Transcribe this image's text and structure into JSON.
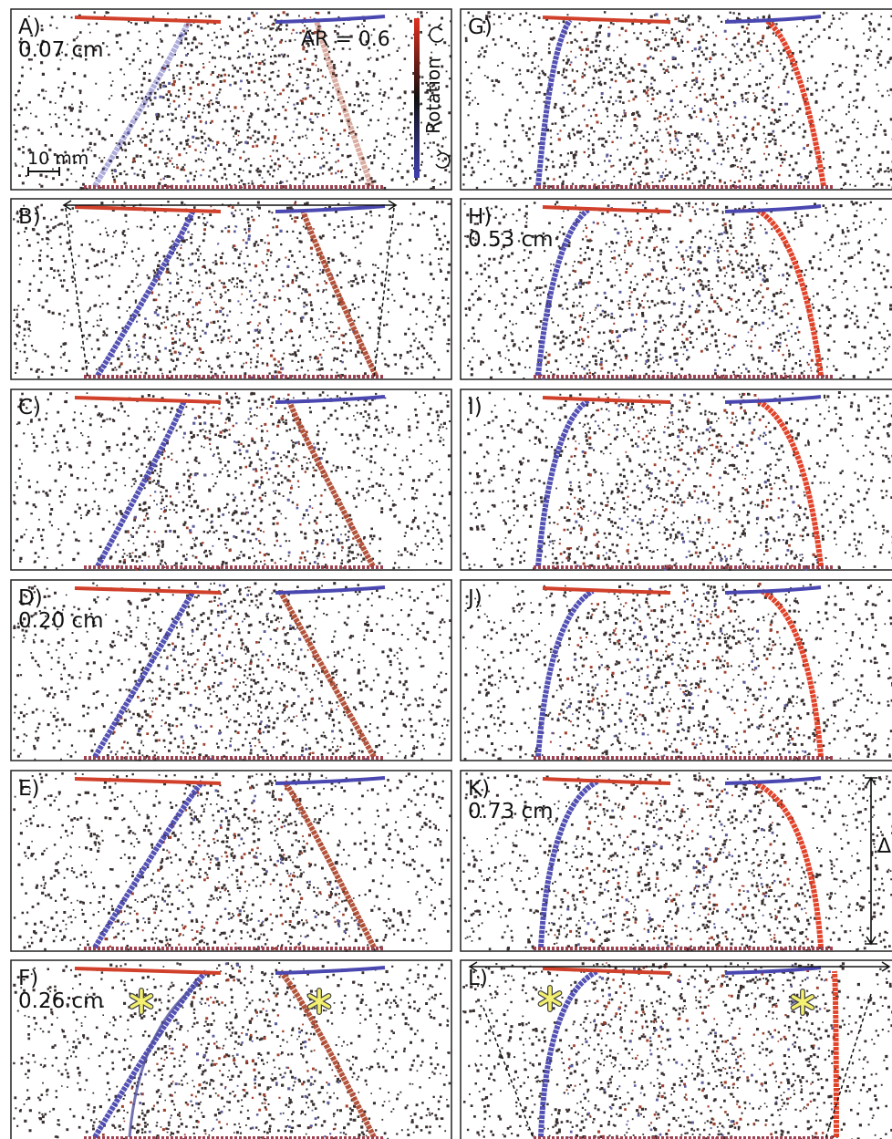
{
  "panels": [
    {
      "label": "A)",
      "displacement": "0.07 cm"
    },
    {
      "label": "B)"
    },
    {
      "label": "C)"
    },
    {
      "label": "D)",
      "displacement": "0.20 cm"
    },
    {
      "label": "E)"
    },
    {
      "label": "F)",
      "displacement": "0.26 cm"
    },
    {
      "label": "G)"
    },
    {
      "label": "H)",
      "displacement": "0.53 cm"
    },
    {
      "label": "I)"
    },
    {
      "label": "J)"
    },
    {
      "label": "K)",
      "displacement": "0.73 cm"
    },
    {
      "label": "L)"
    }
  ],
  "annotations": {
    "aspect_ratio": "AR = 0.6",
    "color_bar": "Rotation",
    "scale_bar": "10 mm",
    "height_marker": "Δ"
  }
}
